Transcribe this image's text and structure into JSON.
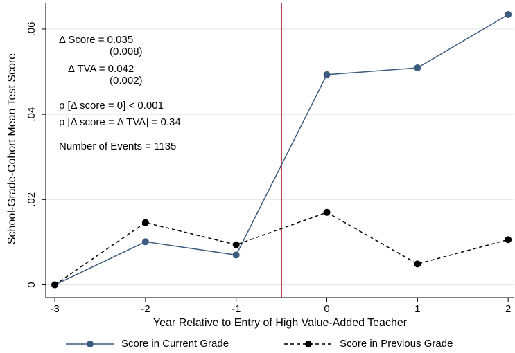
{
  "chart_data": {
    "type": "line",
    "x_label": "Year Relative to Entry of High Value-Added Teacher",
    "y_label": "School-Grade-Cohort Mean Test Score",
    "x": [
      -3,
      -2,
      -1,
      0,
      1,
      2
    ],
    "series": [
      {
        "name": "Score in Current Grade",
        "color": "#3b5b80",
        "line_style": "solid",
        "values": [
          0,
          0.0101,
          0.007,
          0.0493,
          0.0509,
          0.0634
        ]
      },
      {
        "name": "Score in Previous Grade",
        "color": "#000000",
        "line_style": "dashed",
        "values": [
          0,
          0.0146,
          0.0094,
          0.017,
          0.0049,
          0.0106
        ]
      }
    ],
    "xlim": [
      -3.1,
      2.06
    ],
    "ylim": [
      -0.003,
      0.066
    ],
    "xticks": [
      -3,
      -2,
      -1,
      0,
      1,
      2
    ],
    "yticks": [
      0,
      {
        "value": 0.02,
        "label": ".02"
      },
      {
        "value": 0.04,
        "label": ".04"
      },
      {
        "value": 0.06,
        "label": ".06"
      }
    ],
    "grid": true,
    "vline": {
      "x": -0.5,
      "color": "#b22234"
    },
    "annotations": [
      "Δ Score = 0.035",
      "(0.008)",
      "Δ TVA = 0.042",
      "(0.002)",
      "p [Δ score = 0] < 0.001",
      "p [Δ score = Δ TVA]  = 0.34",
      "Number  of Events = 1135"
    ],
    "legend": "bottom"
  }
}
